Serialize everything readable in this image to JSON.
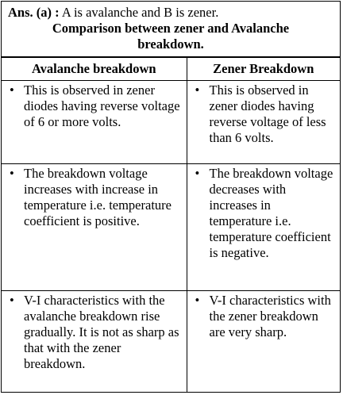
{
  "answer": {
    "label": "Ans. (a) :",
    "text": "A is avalanche and B is zener."
  },
  "title": "Comparison between zener and Avalanche breakdown.",
  "table": {
    "headers": [
      "Avalanche breakdown",
      "Zener Breakdown"
    ],
    "rows": [
      [
        "This is observed in zener diodes having reverse voltage of 6 or more volts.",
        "This is observed in zener diodes having reverse voltage of less than 6 volts."
      ],
      [
        "The breakdown voltage increases with increase in temperature i.e. temperature coefficient is positive.",
        "The breakdown voltage decreases with increases in temperature i.e. temperature coefficient is negative."
      ],
      [
        "V-I characteristics with the avalanche breakdown rise gradually. It is not as sharp as that with the zener breakdown.",
        "V-I characteristics with the zener breakdown are very sharp."
      ]
    ]
  }
}
